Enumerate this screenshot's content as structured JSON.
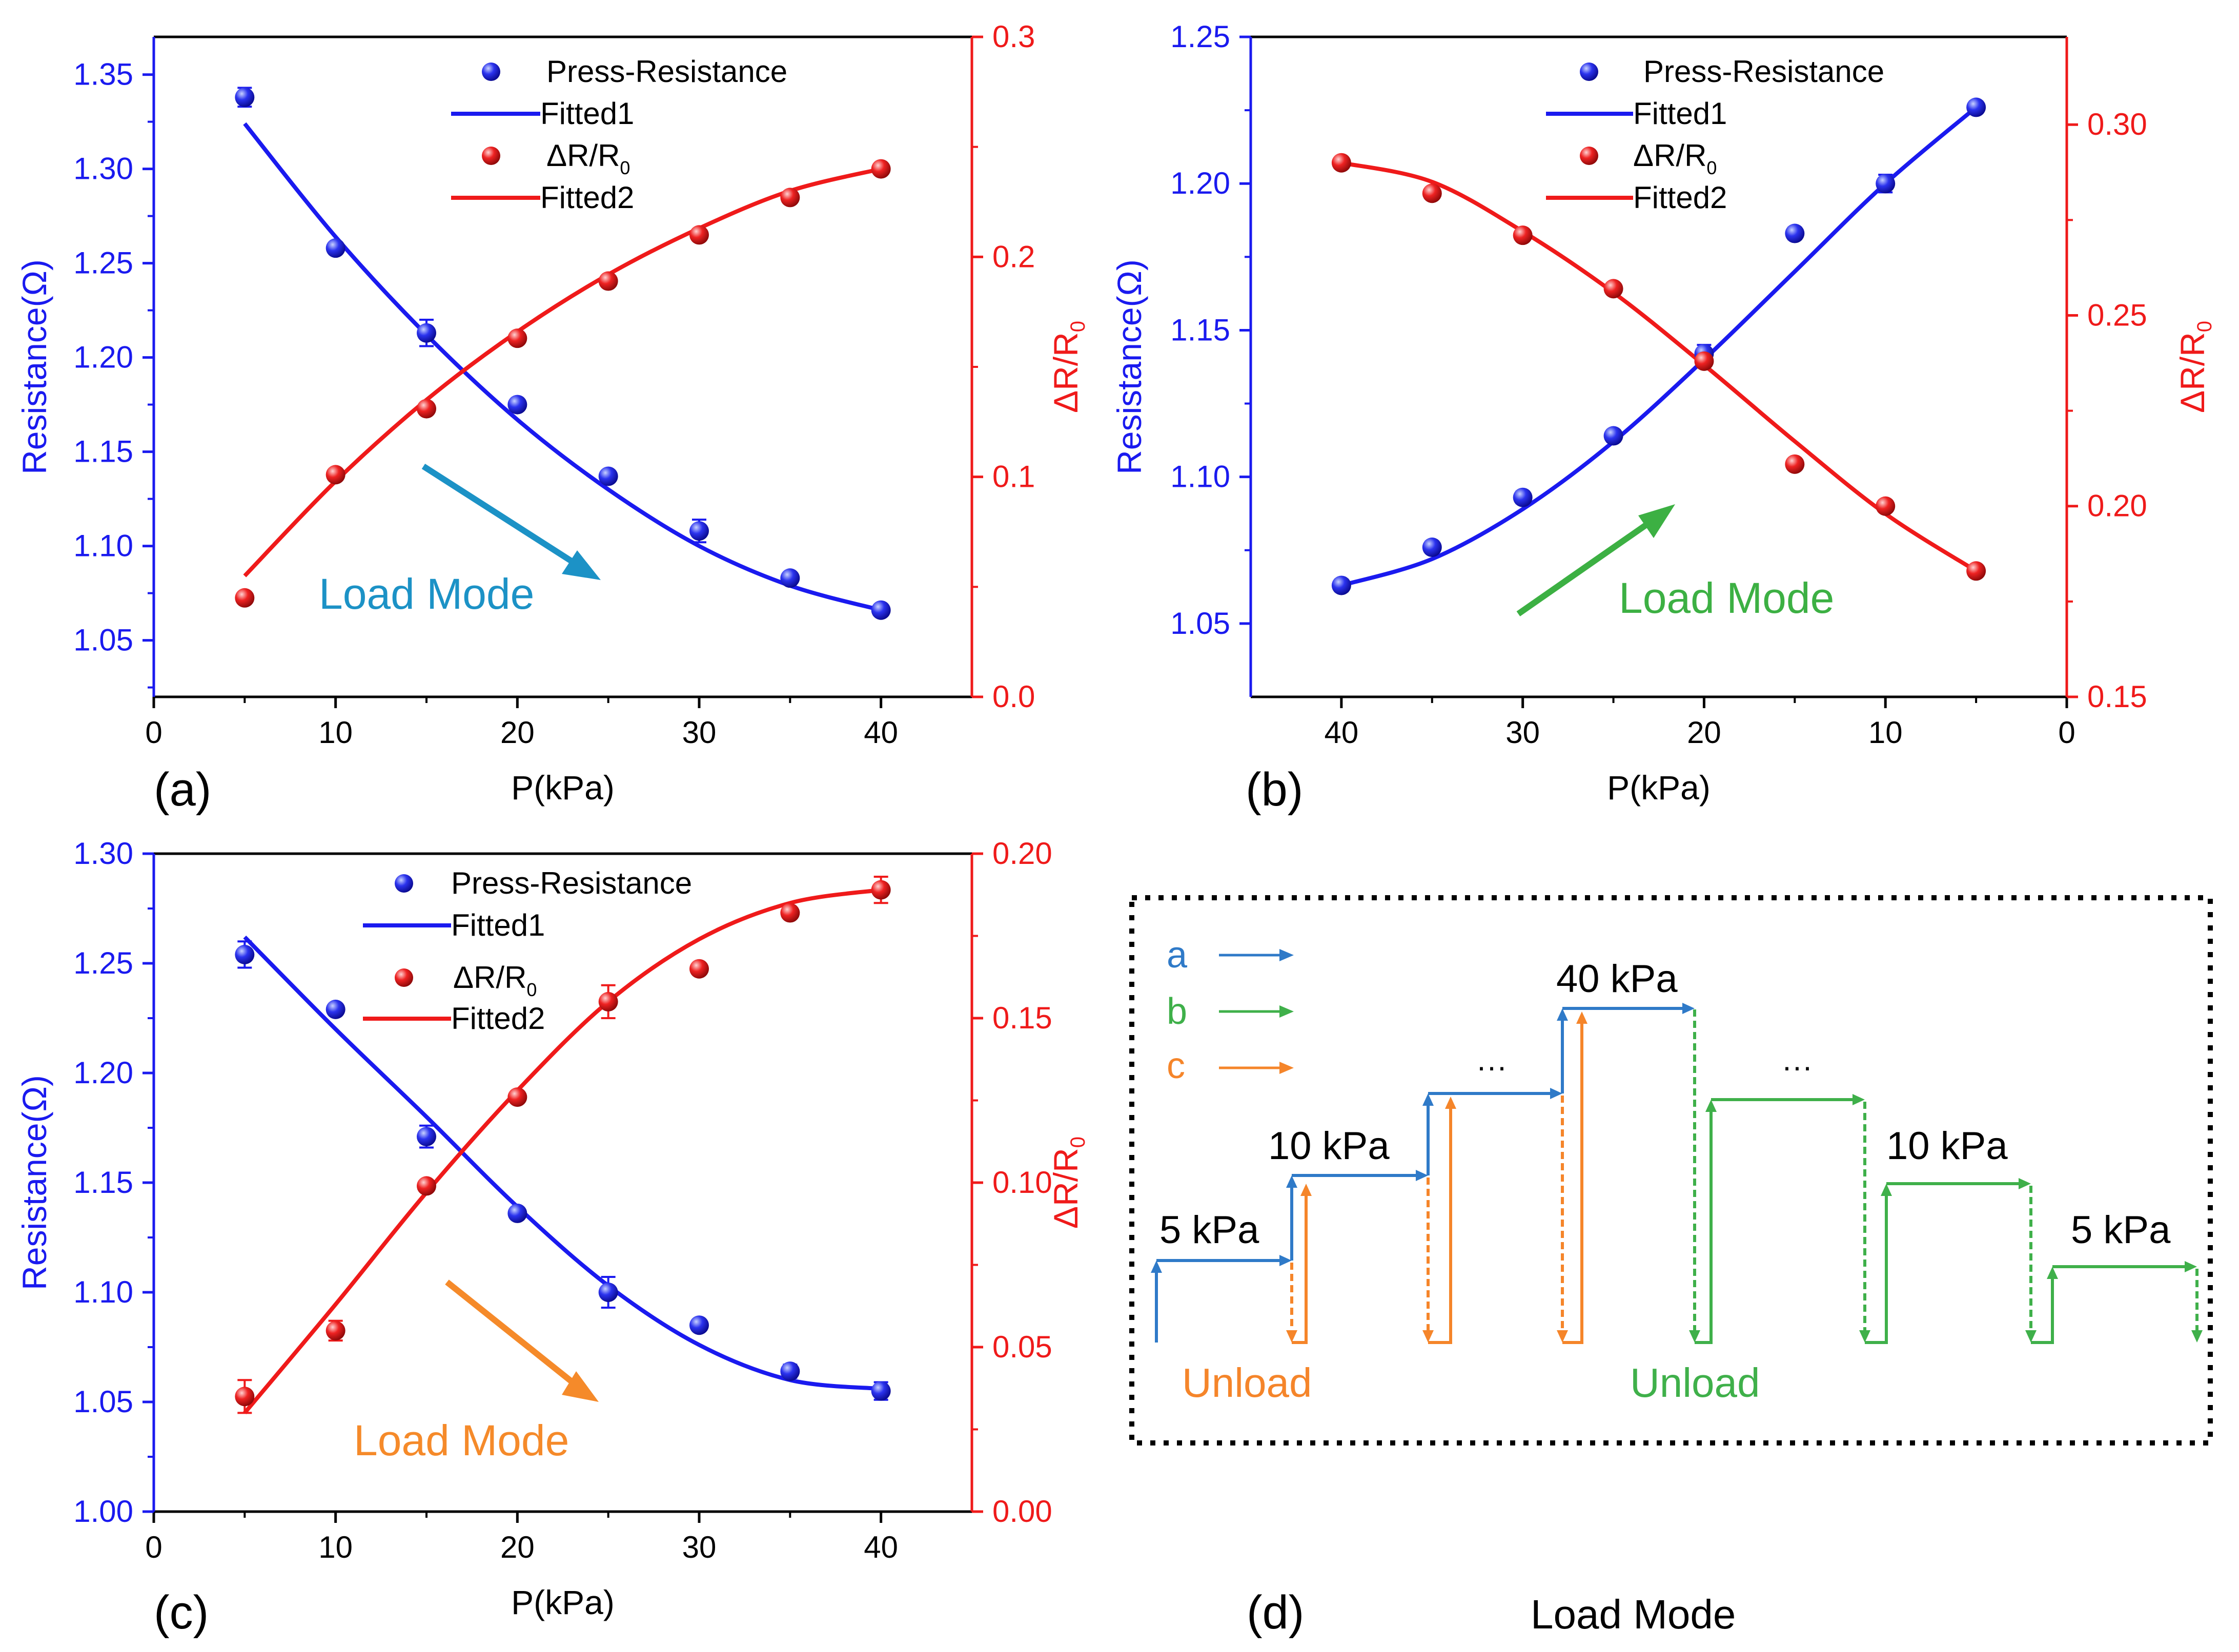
{
  "colors": {
    "blue": "#1a1aef",
    "red": "#ef1a1a",
    "blue_marker": "#2323ee",
    "red_marker": "#ee2222",
    "arrow_teal": "#1c92c6",
    "arrow_green": "#3cb043",
    "arrow_orange": "#f58a2a",
    "diag_blue": "#2f7ac8",
    "diag_green": "#3fb04a",
    "diag_orange": "#f5852a",
    "axis": "#000000"
  },
  "chart_data": [
    {
      "type": "scatter",
      "panel_label": "(a)",
      "xlabel": "P(kPa)",
      "ylabel_left": "Resistance(Ω)",
      "ylabel_right_main": "ΔR/R",
      "ylabel_right_sub": "0",
      "xlim": [
        0,
        45
      ],
      "x_reversed": false,
      "xticks": [
        0,
        10,
        20,
        30,
        40
      ],
      "ylim_left": [
        1.02,
        1.37
      ],
      "yticks_left": [
        1.05,
        1.1,
        1.15,
        1.2,
        1.25,
        1.3,
        1.35
      ],
      "ylim_right": [
        0.0,
        0.3
      ],
      "yticks_right": [
        0.0,
        0.1,
        0.2,
        0.3
      ],
      "legend": {
        "press": "Press-Resistance",
        "fit1": "Fitted1",
        "dr_main": "ΔR/R",
        "dr_sub": "0",
        "fit2": "Fitted2"
      },
      "annotation": {
        "text": "Load Mode",
        "color_key": "arrow_teal"
      },
      "series": [
        {
          "name": "Press-Resistance",
          "axis": "left",
          "x": [
            5,
            10,
            15,
            20,
            25,
            30,
            35,
            40
          ],
          "values": [
            1.338,
            1.258,
            1.213,
            1.175,
            1.137,
            1.108,
            1.083,
            1.066
          ],
          "err": [
            0.005,
            0.002,
            0.007,
            0.002,
            0.002,
            0.006,
            0.002,
            0.002
          ]
        },
        {
          "name": "ΔR/R0",
          "axis": "right",
          "x": [
            5,
            10,
            15,
            20,
            25,
            30,
            35,
            40
          ],
          "values": [
            0.045,
            0.101,
            0.131,
            0.163,
            0.189,
            0.21,
            0.227,
            0.24
          ],
          "err": [
            0,
            0,
            0,
            0,
            0,
            0,
            0,
            0
          ]
        },
        {
          "name": "Fitted1",
          "axis": "left",
          "curve": true,
          "x": [
            5,
            10,
            15,
            20,
            25,
            30,
            35,
            40
          ],
          "values": [
            1.324,
            1.264,
            1.212,
            1.167,
            1.13,
            1.1,
            1.079,
            1.066
          ]
        },
        {
          "name": "Fitted2",
          "axis": "right",
          "curve": true,
          "x": [
            5,
            10,
            15,
            20,
            25,
            30,
            35,
            40
          ],
          "values": [
            0.055,
            0.098,
            0.135,
            0.166,
            0.192,
            0.213,
            0.23,
            0.24
          ]
        }
      ]
    },
    {
      "type": "scatter",
      "panel_label": "(b)",
      "xlabel": "P(kPa)",
      "ylabel_left": "Resistance(Ω)",
      "ylabel_right_main": "ΔR/R",
      "ylabel_right_sub": "0",
      "xlim": [
        0,
        45
      ],
      "x_reversed": true,
      "xticks": [
        40,
        30,
        20,
        10,
        0
      ],
      "ylim_left": [
        1.025,
        1.25
      ],
      "yticks_left": [
        1.05,
        1.1,
        1.15,
        1.2,
        1.25
      ],
      "ylim_right": [
        0.15,
        0.323
      ],
      "yticks_right": [
        0.15,
        0.2,
        0.25,
        0.3
      ],
      "legend": {
        "press": "Press-Resistance",
        "fit1": "Fitted1",
        "dr_main": "ΔR/R",
        "dr_sub": "0",
        "fit2": "Fitted2"
      },
      "annotation": {
        "text": "Load Mode",
        "color_key": "arrow_green"
      },
      "series": [
        {
          "name": "Press-Resistance",
          "axis": "left",
          "x": [
            40,
            35,
            30,
            25,
            20,
            15,
            10,
            5
          ],
          "values": [
            1.063,
            1.076,
            1.093,
            1.114,
            1.142,
            1.183,
            1.2,
            1.226
          ],
          "err": [
            0.002,
            0.002,
            0.002,
            0.002,
            0.003,
            0.002,
            0.003,
            0.002
          ]
        },
        {
          "name": "ΔR/R0",
          "axis": "right",
          "x": [
            40,
            35,
            30,
            25,
            20,
            15,
            10,
            5
          ],
          "values": [
            0.29,
            0.282,
            0.271,
            0.257,
            0.238,
            0.211,
            0.2,
            0.183
          ],
          "err": [
            0,
            0,
            0,
            0,
            0,
            0,
            0,
            0
          ]
        },
        {
          "name": "Fitted1",
          "axis": "left",
          "curve": true,
          "x": [
            40,
            35,
            30,
            25,
            20,
            15,
            10,
            5
          ],
          "values": [
            1.063,
            1.072,
            1.089,
            1.112,
            1.14,
            1.17,
            1.2,
            1.226
          ]
        },
        {
          "name": "Fitted2",
          "axis": "right",
          "curve": true,
          "x": [
            40,
            35,
            30,
            25,
            20,
            15,
            10,
            5
          ],
          "values": [
            0.29,
            0.285,
            0.272,
            0.256,
            0.237,
            0.217,
            0.198,
            0.183
          ]
        }
      ]
    },
    {
      "type": "scatter",
      "panel_label": "(c)",
      "xlabel": "P(kPa)",
      "ylabel_left": "Resistance(Ω)",
      "ylabel_right_main": "ΔR/R",
      "ylabel_right_sub": "0",
      "xlim": [
        0,
        45
      ],
      "x_reversed": false,
      "xticks": [
        0,
        10,
        20,
        30,
        40
      ],
      "ylim_left": [
        1.0,
        1.3
      ],
      "yticks_left": [
        1.0,
        1.05,
        1.1,
        1.15,
        1.2,
        1.25,
        1.3
      ],
      "ylim_right": [
        0.0,
        0.2
      ],
      "yticks_right": [
        0.0,
        0.05,
        0.1,
        0.15,
        0.2
      ],
      "legend": {
        "press": "Press-Resistance",
        "fit1": "Fitted1",
        "dr_main": "ΔR/R",
        "dr_sub": "0",
        "fit2": "Fitted2"
      },
      "annotation": {
        "text": "Load Mode",
        "color_key": "arrow_orange"
      },
      "series": [
        {
          "name": "Press-Resistance",
          "axis": "left",
          "x": [
            5,
            10,
            15,
            20,
            25,
            30,
            35,
            40
          ],
          "values": [
            1.254,
            1.229,
            1.171,
            1.136,
            1.1,
            1.085,
            1.064,
            1.055
          ],
          "err": [
            0.006,
            0.002,
            0.005,
            0.002,
            0.007,
            0.002,
            0.003,
            0.004
          ]
        },
        {
          "name": "ΔR/R0",
          "axis": "right",
          "x": [
            5,
            10,
            15,
            20,
            25,
            30,
            35,
            40
          ],
          "values": [
            0.035,
            0.055,
            0.099,
            0.126,
            0.155,
            0.165,
            0.182,
            0.189
          ],
          "err": [
            0.005,
            0.003,
            0,
            0,
            0.005,
            0,
            0,
            0.004
          ]
        },
        {
          "name": "Fitted1",
          "axis": "left",
          "curve": true,
          "x": [
            5,
            10,
            15,
            20,
            25,
            30,
            35,
            40
          ],
          "values": [
            1.262,
            1.22,
            1.18,
            1.139,
            1.103,
            1.076,
            1.06,
            1.056
          ]
        },
        {
          "name": "Fitted2",
          "axis": "right",
          "curve": true,
          "x": [
            5,
            10,
            15,
            20,
            25,
            30,
            35,
            40
          ],
          "values": [
            0.03,
            0.063,
            0.097,
            0.128,
            0.155,
            0.174,
            0.185,
            0.189
          ]
        }
      ]
    }
  ],
  "diagram_d": {
    "panel_label": "(d)",
    "caption": "Load Mode",
    "legend": [
      {
        "label": "a",
        "color_key": "diag_blue"
      },
      {
        "label": "b",
        "color_key": "diag_green"
      },
      {
        "label": "c",
        "color_key": "diag_orange"
      }
    ],
    "labels": {
      "p5_left": "5 kPa",
      "p10_left": "10 kPa",
      "p40": "40 kPa",
      "p10_right": "10 kPa",
      "p5_right": "5 kPa",
      "dots_left": "···",
      "dots_right": "···",
      "unload_orange": "Unload",
      "unload_green": "Unload"
    }
  }
}
